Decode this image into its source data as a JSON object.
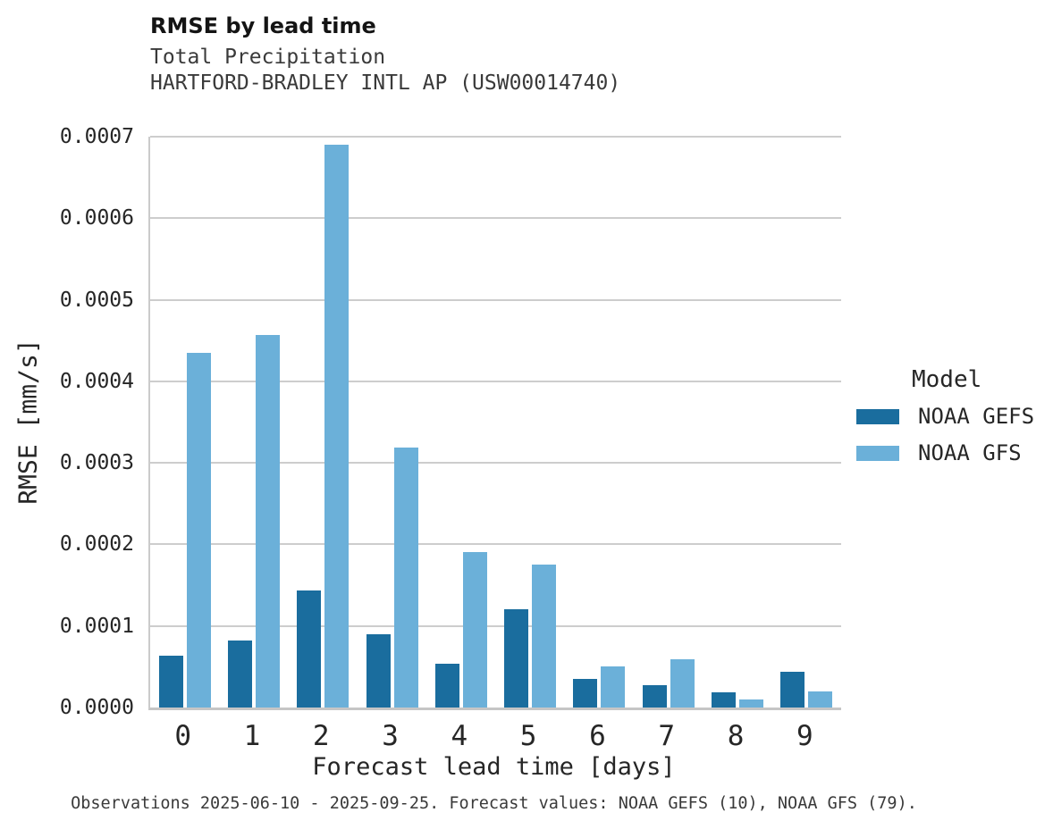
{
  "header": {
    "title": "RMSE by lead time",
    "subtitle1": "Total Precipitation",
    "subtitle2": "HARTFORD-BRADLEY INTL AP (USW00014740)"
  },
  "caption": "Observations 2025-06-10 - 2025-09-25. Forecast values: NOAA GEFS (10), NOAA GFS (79).",
  "legend": {
    "title": "Model",
    "entries": [
      {
        "label": "NOAA GEFS"
      },
      {
        "label": "NOAA GFS"
      }
    ]
  },
  "colors": {
    "gefs_dark_blue": "#1a6d9e",
    "gfs_light_blue": "#6bb0d9",
    "gridline_gray": "#cdcdcd",
    "text_dark": "#262626"
  },
  "chart_data": {
    "type": "bar",
    "title": "RMSE by lead time",
    "subtitle": "Total Precipitation — HARTFORD-BRADLEY INTL AP (USW00014740)",
    "xlabel": "Forecast lead time [days]",
    "ylabel": "RMSE [mm/s]",
    "categories": [
      "0",
      "1",
      "2",
      "3",
      "4",
      "5",
      "6",
      "7",
      "8",
      "9"
    ],
    "series": [
      {
        "name": "NOAA GEFS",
        "color": "#1a6d9e",
        "values": [
          6.4e-05,
          8.2e-05,
          0.000143,
          9e-05,
          5.4e-05,
          0.00012,
          3.5e-05,
          2.7e-05,
          1.9e-05,
          4.4e-05
        ]
      },
      {
        "name": "NOAA GFS",
        "color": "#6bb0d9",
        "values": [
          0.000435,
          0.000457,
          0.00069,
          0.000319,
          0.000191,
          0.000175,
          5e-05,
          5.9e-05,
          1e-05,
          2e-05
        ]
      }
    ],
    "ylim": [
      0,
      0.0007
    ],
    "yticks": [
      "0.0000",
      "0.0001",
      "0.0002",
      "0.0003",
      "0.0004",
      "0.0005",
      "0.0006",
      "0.0007"
    ],
    "grid": "horizontal",
    "legend_position": "right"
  }
}
